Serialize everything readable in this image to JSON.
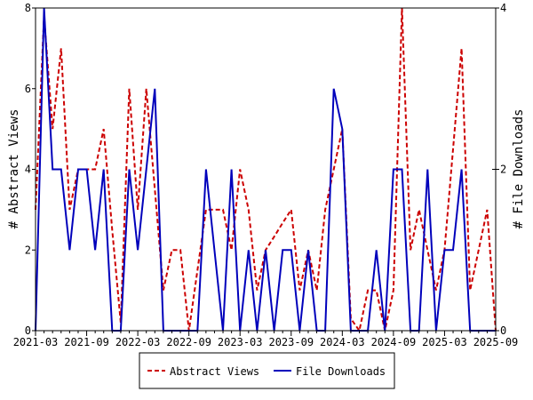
{
  "chart_data": {
    "type": "line",
    "title": "",
    "xlabel": "",
    "ylabel": "# Abstract Views",
    "y2label": "# File Downloads",
    "ylim": [
      0,
      8
    ],
    "y2lim": [
      0,
      4
    ],
    "yticks": [
      "0",
      "2",
      "4",
      "6",
      "8"
    ],
    "y2ticks": [
      "0",
      "2",
      "4"
    ],
    "xticks": [
      "2021-03",
      "2021-09",
      "2022-03",
      "2022-09",
      "2023-03",
      "2023-09",
      "2024-03",
      "2024-09",
      "2025-03",
      "2025-09"
    ],
    "x_start": "2021-03",
    "x_end": "2025-09",
    "legend_position": "bottom",
    "grid": false,
    "series": [
      {
        "name": "Abstract Views",
        "axis": "left",
        "color": "#cc0000",
        "style": "dashed",
        "values": [
          3,
          7.8,
          5,
          7,
          3,
          4,
          4,
          4,
          5,
          2.5,
          0.2,
          6,
          3,
          6,
          3.5,
          1,
          2,
          2,
          0,
          1.5,
          3,
          3,
          3,
          2,
          4,
          3,
          1,
          2,
          2.33,
          2.67,
          3,
          1,
          2,
          1,
          3,
          4,
          5,
          0.3,
          0,
          1,
          1,
          0,
          1,
          8,
          2,
          3,
          2,
          1,
          2,
          4.5,
          7,
          1,
          2,
          3,
          0
        ]
      },
      {
        "name": "File Downloads",
        "axis": "right",
        "color": "#0000bb",
        "style": "solid",
        "values": [
          0,
          4,
          2,
          2,
          1,
          2,
          2,
          1,
          2,
          0,
          0,
          2,
          1,
          2,
          3,
          0,
          0,
          0,
          0,
          0,
          2,
          1,
          0,
          2,
          0,
          1,
          0,
          1,
          0,
          1,
          1,
          0,
          1,
          0,
          0,
          3,
          2.5,
          0,
          0,
          0,
          1,
          0,
          2,
          2,
          0,
          0,
          2,
          0,
          1,
          1,
          2,
          0,
          0,
          0,
          0
        ]
      }
    ]
  }
}
